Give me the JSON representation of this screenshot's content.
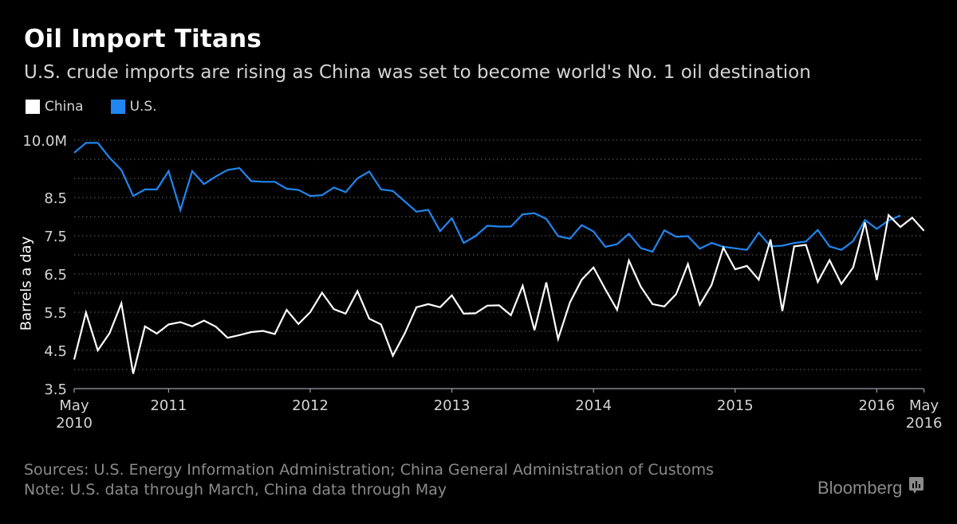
{
  "title": "Oil Import Titans",
  "subtitle": "U.S. crude imports are rising as China was set to become world's No. 1 oil destination",
  "legend": [
    {
      "label": "China",
      "color": "#ffffff"
    },
    {
      "label": "U.S.",
      "color": "#1f86f0"
    }
  ],
  "footer": {
    "sources": "Sources: U.S. Energy Information Administration; China General Administration of Customs",
    "note": "Note: U.S. data through March, China data through May"
  },
  "brand": {
    "name": "Bloomberg",
    "icon": "bloomberg-chart-icon"
  },
  "chart_data": {
    "type": "line",
    "title": "Oil Import Titans",
    "subtitle": "U.S. crude imports are rising as China was set to become world's No. 1 oil destination",
    "xlabel": "",
    "ylabel": "Barrels a day",
    "ylim": [
      3.5,
      10.0
    ],
    "y_unit": "M",
    "y_ticks": [
      {
        "value": 10.0,
        "label": "10.0M"
      },
      {
        "value": 8.5,
        "label": "8.5"
      },
      {
        "value": 7.5,
        "label": "7.5"
      },
      {
        "value": 6.5,
        "label": "6.5"
      },
      {
        "value": 5.5,
        "label": "5.5"
      },
      {
        "value": 4.5,
        "label": "4.5"
      },
      {
        "value": 3.5,
        "label": "3.5"
      }
    ],
    "gridlines_every": 0.5,
    "grid": true,
    "x_start": "2010-05",
    "x_end": "2016-05",
    "x_ticks": [
      {
        "month_index": 0,
        "label": [
          "May",
          "2010"
        ]
      },
      {
        "month_index": 8,
        "label": [
          "2011"
        ]
      },
      {
        "month_index": 20,
        "label": [
          "2012"
        ]
      },
      {
        "month_index": 32,
        "label": [
          "2013"
        ]
      },
      {
        "month_index": 44,
        "label": [
          "2014"
        ]
      },
      {
        "month_index": 56,
        "label": [
          "2015"
        ]
      },
      {
        "month_index": 68,
        "label": [
          "2016"
        ]
      },
      {
        "month_index": 72,
        "label": [
          "May",
          "2016"
        ]
      }
    ],
    "legend_position": "top-left",
    "series": [
      {
        "name": "U.S.",
        "color": "#1f86f0",
        "start": "2010-05",
        "end": "2016-03",
        "values": [
          9.67,
          9.93,
          9.93,
          9.54,
          9.22,
          8.54,
          8.71,
          8.71,
          9.19,
          8.17,
          9.19,
          8.85,
          9.05,
          9.22,
          9.27,
          8.93,
          8.91,
          8.91,
          8.73,
          8.7,
          8.54,
          8.56,
          8.76,
          8.64,
          9.0,
          9.18,
          8.71,
          8.67,
          8.4,
          8.13,
          8.18,
          7.62,
          7.96,
          7.31,
          7.49,
          7.76,
          7.74,
          7.74,
          8.06,
          8.09,
          7.94,
          7.49,
          7.42,
          7.78,
          7.61,
          7.21,
          7.28,
          7.55,
          7.18,
          7.08,
          7.64,
          7.47,
          7.49,
          7.16,
          7.31,
          7.21,
          7.17,
          7.13,
          7.58,
          7.22,
          7.24,
          7.31,
          7.35,
          7.65,
          7.22,
          7.13,
          7.36,
          7.91,
          7.68,
          7.9,
          8.03
        ]
      },
      {
        "name": "China",
        "color": "#ffffff",
        "start": "2010-05",
        "end": "2016-05",
        "values": [
          4.26,
          5.49,
          4.5,
          4.95,
          5.73,
          3.89,
          5.13,
          4.94,
          5.18,
          5.24,
          5.13,
          5.28,
          5.12,
          4.83,
          4.9,
          4.98,
          5.01,
          4.93,
          5.56,
          5.19,
          5.5,
          6.01,
          5.58,
          5.46,
          6.05,
          5.33,
          5.18,
          4.36,
          4.94,
          5.63,
          5.71,
          5.63,
          5.94,
          5.46,
          5.47,
          5.67,
          5.68,
          5.42,
          6.19,
          5.03,
          6.28,
          4.8,
          5.75,
          6.35,
          6.67,
          6.1,
          5.56,
          6.85,
          6.17,
          5.71,
          5.65,
          5.97,
          6.76,
          5.69,
          6.21,
          7.19,
          6.62,
          6.71,
          6.35,
          7.4,
          5.53,
          7.22,
          7.26,
          6.29,
          6.86,
          6.24,
          6.67,
          7.85,
          6.34,
          8.04,
          7.73,
          7.97,
          7.63
        ]
      }
    ]
  }
}
